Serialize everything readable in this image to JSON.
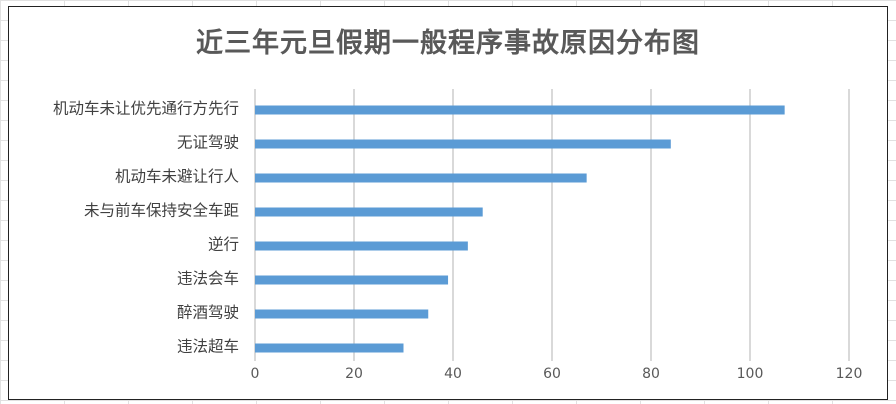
{
  "chart_data": {
    "type": "bar",
    "orientation": "horizontal",
    "title": "近三年元旦假期一般程序事故原因分布图",
    "categories": [
      "机动车未让优先通行方先行",
      "无证驾驶",
      "机动车未避让行人",
      "未与前车保持安全车距",
      "逆行",
      "违法会车",
      "醉酒驾驶",
      "违法超车"
    ],
    "values": [
      107,
      84,
      67,
      46,
      43,
      39,
      35,
      30
    ],
    "xlim": [
      0,
      120
    ],
    "x_ticks": [
      "0",
      "20",
      "40",
      "60",
      "80",
      "100",
      "120"
    ],
    "grid": true,
    "legend": "none",
    "bar_color": "#5B9BD5",
    "grid_color": "#D9D9D9"
  }
}
